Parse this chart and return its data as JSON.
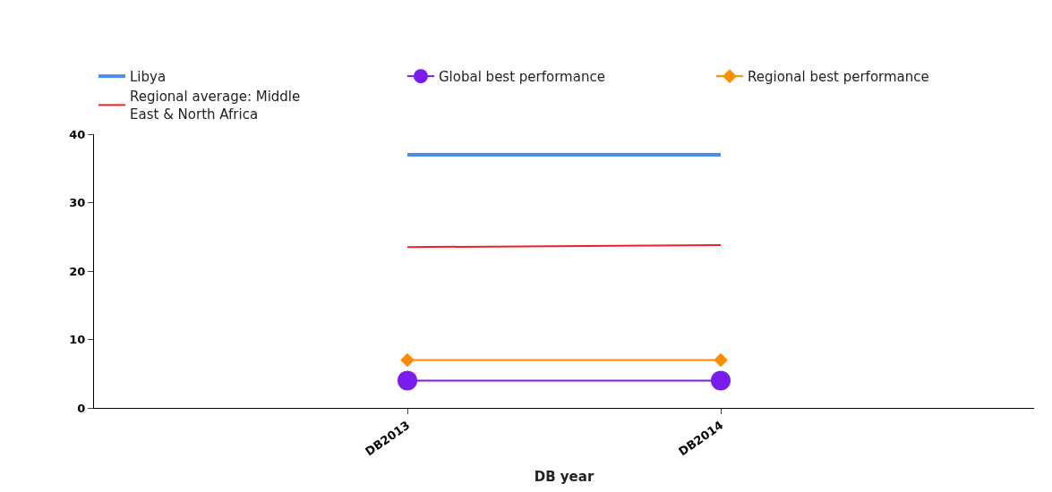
{
  "chart_data": {
    "type": "line",
    "xlabel": "DB year",
    "categories": [
      "DB2013",
      "DB2014"
    ],
    "series": [
      {
        "name": "Libya",
        "color": "#4a90e8",
        "values": [
          37,
          37
        ],
        "marker": "none"
      },
      {
        "name": "Global best performance",
        "color": "#7a1cf0",
        "values": [
          4,
          4
        ],
        "marker": "circle"
      },
      {
        "name": "Regional best performance",
        "color": "#ff8c00",
        "values": [
          7,
          7
        ],
        "marker": "diamond"
      },
      {
        "name": "Regional average: Middle East & North Africa",
        "color": "#ee2222",
        "values": [
          23.5,
          23.8
        ],
        "marker": "none"
      }
    ],
    "ylim": [
      0,
      40
    ],
    "yticks": [
      0,
      10,
      20,
      30,
      40
    ],
    "legend": "top left"
  }
}
